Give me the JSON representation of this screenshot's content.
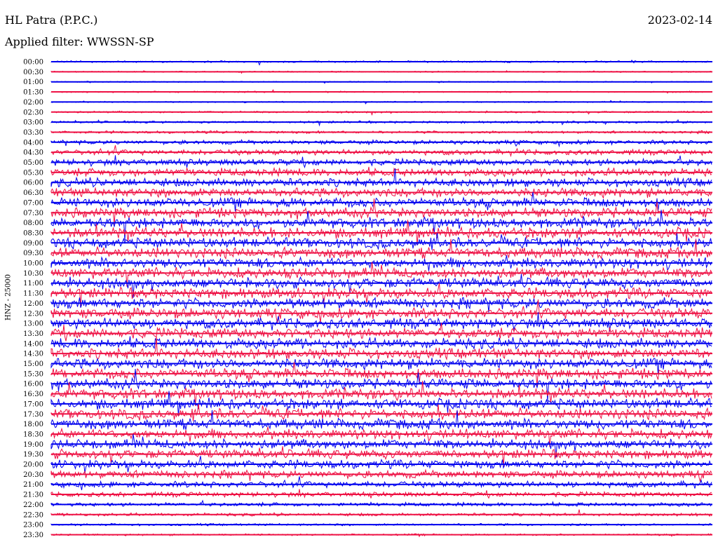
{
  "header": {
    "station": "HL Patra (P.P.C.)",
    "date": "2023-02-14",
    "filter": "Applied filter: WWSSN-SP"
  },
  "channel_label": "HNZ - 25000",
  "colors": {
    "even_rows": "#0000ee",
    "odd_rows": "#ee1144"
  },
  "chart_data": {
    "type": "line",
    "title": "HL Patra (P.P.C.)",
    "xlabel": "",
    "ylabel": "HNZ - 25000",
    "grid": false,
    "row_labels": [
      "00:00",
      "00:30",
      "01:00",
      "01:30",
      "02:00",
      "02:30",
      "03:00",
      "03:30",
      "04:00",
      "04:30",
      "05:00",
      "05:30",
      "06:00",
      "06:30",
      "07:00",
      "07:30",
      "08:00",
      "08:30",
      "09:00",
      "09:30",
      "10:00",
      "10:30",
      "11:00",
      "11:30",
      "12:00",
      "12:30",
      "13:00",
      "13:30",
      "14:00",
      "14:30",
      "15:00",
      "15:30",
      "16:00",
      "16:30",
      "17:00",
      "17:30",
      "18:00",
      "18:30",
      "19:00",
      "19:30",
      "20:00",
      "20:30",
      "21:00",
      "21:30",
      "22:00",
      "22:30",
      "23:00",
      "23:30"
    ],
    "row_amplitude_relative": [
      0.1,
      0.07,
      0.06,
      0.08,
      0.07,
      0.1,
      0.12,
      0.14,
      0.22,
      0.28,
      0.35,
      0.42,
      0.45,
      0.48,
      0.5,
      0.52,
      0.55,
      0.55,
      0.55,
      0.55,
      0.55,
      0.55,
      0.55,
      0.55,
      0.55,
      0.55,
      0.55,
      0.55,
      0.55,
      0.55,
      0.55,
      0.55,
      0.55,
      0.55,
      0.55,
      0.55,
      0.55,
      0.52,
      0.5,
      0.48,
      0.45,
      0.4,
      0.32,
      0.26,
      0.2,
      0.16,
      0.12,
      0.1
    ],
    "row_colors": [
      "blue",
      "red"
    ]
  }
}
